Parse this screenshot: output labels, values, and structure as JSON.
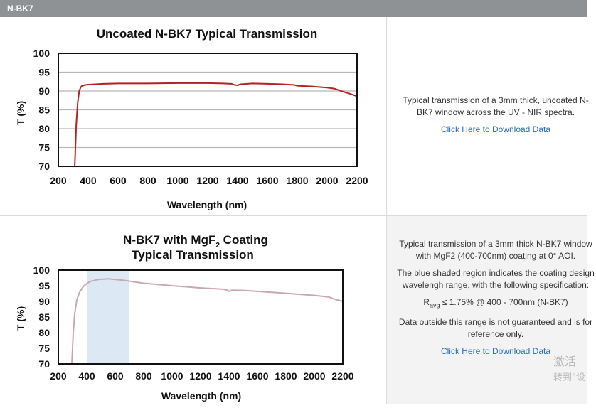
{
  "header": {
    "title": "N-BK7"
  },
  "chart_data": [
    {
      "type": "line",
      "title": "Uncoated N-BK7 Typical Transmission",
      "xlabel": "Wavelength (nm)",
      "ylabel": "T (%)",
      "xlim": [
        200,
        2200
      ],
      "ylim": [
        70,
        100
      ],
      "x_ticks": [
        "200",
        "400",
        "600",
        "800",
        "1000",
        "1200",
        "1400",
        "1600",
        "1800",
        "2000",
        "2200"
      ],
      "y_ticks": [
        "100",
        "95",
        "90",
        "85",
        "80",
        "75",
        "70"
      ],
      "grid": "horizontal",
      "color": "#b22222",
      "series": [
        {
          "x": [
            310,
            320,
            330,
            340,
            350,
            360,
            380,
            400,
            450,
            500,
            600,
            800,
            1000,
            1200,
            1300,
            1360,
            1380,
            1400,
            1420,
            1500,
            1600,
            1700,
            1780,
            1800,
            1900,
            2000,
            2050,
            2100,
            2150,
            2200
          ],
          "y": [
            70,
            81,
            87,
            90,
            91,
            91.4,
            91.6,
            91.7,
            91.8,
            91.9,
            92.0,
            92.0,
            92.1,
            92.1,
            92.0,
            91.9,
            91.6,
            91.5,
            91.8,
            92.0,
            91.9,
            91.8,
            91.6,
            91.4,
            91.2,
            90.9,
            90.6,
            89.9,
            89.3,
            88.6
          ]
        }
      ]
    },
    {
      "type": "line",
      "title_line1": "N-BK7 with MgF",
      "title_sub": "2",
      "title_line1_end": " Coating",
      "title_line2": "Typical Transmission",
      "xlabel": "Wavelength (nm)",
      "ylabel": "T (%)",
      "xlim": [
        200,
        2200
      ],
      "ylim": [
        70,
        100
      ],
      "x_ticks": [
        "200",
        "400",
        "600",
        "800",
        "1000",
        "1200",
        "1400",
        "1600",
        "1800",
        "2000",
        "2200"
      ],
      "y_ticks": [
        "100",
        "95",
        "90",
        "85",
        "80",
        "75",
        "70"
      ],
      "grid": "none",
      "color": "#c9a7b3",
      "shaded_region": [
        400,
        700
      ],
      "shade_color": "#dce9f5",
      "series": [
        {
          "x": [
            295,
            305,
            315,
            330,
            350,
            380,
            420,
            480,
            550,
            650,
            800,
            1000,
            1200,
            1350,
            1390,
            1400,
            1420,
            1500,
            1600,
            1800,
            2000,
            2100,
            2150,
            2200
          ],
          "y": [
            70,
            80,
            86,
            90.5,
            93,
            95,
            96.3,
            97,
            97.2,
            96.8,
            95.8,
            95,
            94.3,
            93.9,
            93.6,
            93.2,
            93.6,
            93.5,
            93.2,
            92.6,
            91.9,
            91.4,
            90.6,
            90.0
          ]
        }
      ]
    }
  ],
  "row1": {
    "desc": "Typical transmission of a 3mm thick, uncoated N-BK7 window across the UV - NIR spectra.",
    "link": "Click Here to Download Data"
  },
  "row2": {
    "desc1": "Typical transmission of a 3mm thick N-BK7 window with MgF2 (400-700nm) coating at 0° AOI.",
    "desc2": "The blue shaded region indicates the coating design wavelengh range, with the following specification:",
    "spec_r": "R",
    "spec_sub": "avg",
    "spec_rest": " ≤ 1.75% @ 400 - 700nm (N-BK7)",
    "desc3": "Data outside this range is not guaranteed and is for reference only.",
    "link": "Click Here to Download Data"
  },
  "watermark": {
    "line1": "激活",
    "line2": "转到\"设"
  }
}
